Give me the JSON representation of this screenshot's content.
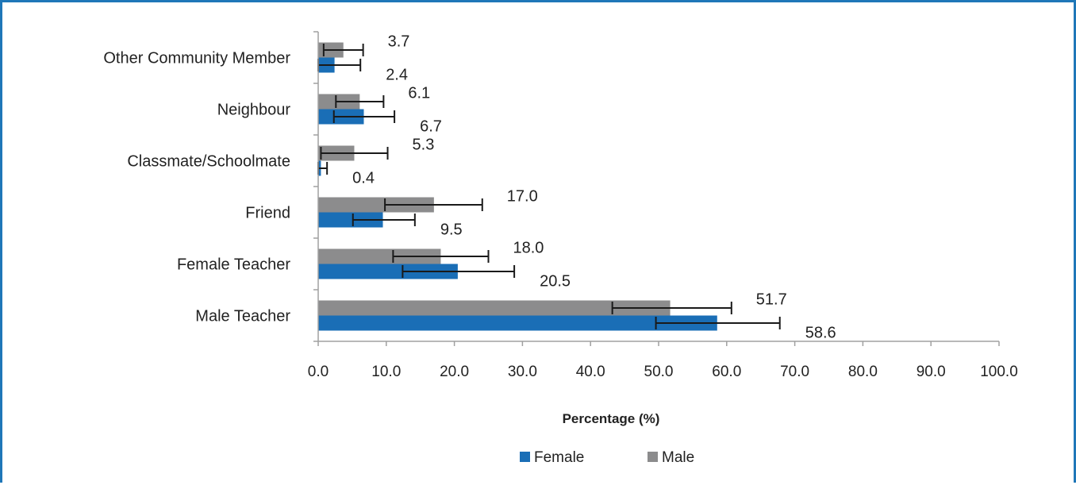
{
  "chart_data": {
    "type": "bar",
    "orientation": "horizontal",
    "categories": [
      "Male Teacher",
      "Female Teacher",
      "Friend",
      "Classmate/Schoolmate",
      "Neighbour",
      "Other Community Member"
    ],
    "series": [
      {
        "name": "Female",
        "color": "#1a6eb6",
        "values": [
          58.6,
          20.5,
          9.5,
          0.4,
          6.7,
          2.4
        ],
        "labels": [
          "58.6",
          "20.5",
          "9.5",
          "0.4",
          "6.7",
          "2.4"
        ],
        "error_low": [
          49.6,
          12.4,
          5.1,
          0.0,
          2.3,
          0.0
        ],
        "error_high": [
          67.8,
          28.8,
          14.2,
          1.3,
          11.2,
          6.2
        ]
      },
      {
        "name": "Male",
        "color": "#8c8c8d",
        "values": [
          51.7,
          18.0,
          17.0,
          5.3,
          6.1,
          3.7
        ],
        "labels": [
          "51.7",
          "18.0",
          "17.0",
          "5.3",
          "6.1",
          "3.7"
        ],
        "error_low": [
          43.2,
          11.0,
          9.8,
          0.4,
          2.6,
          0.8
        ],
        "error_high": [
          60.7,
          25.0,
          24.1,
          10.2,
          9.6,
          6.6
        ]
      }
    ],
    "xlabel": "Percentage (%)",
    "xlim": [
      0,
      100
    ],
    "xticks": [
      "0.0",
      "10.0",
      "20.0",
      "30.0",
      "40.0",
      "50.0",
      "60.0",
      "70.0",
      "80.0",
      "90.0",
      "100.0"
    ],
    "legend_position": "bottom",
    "grid": false
  }
}
